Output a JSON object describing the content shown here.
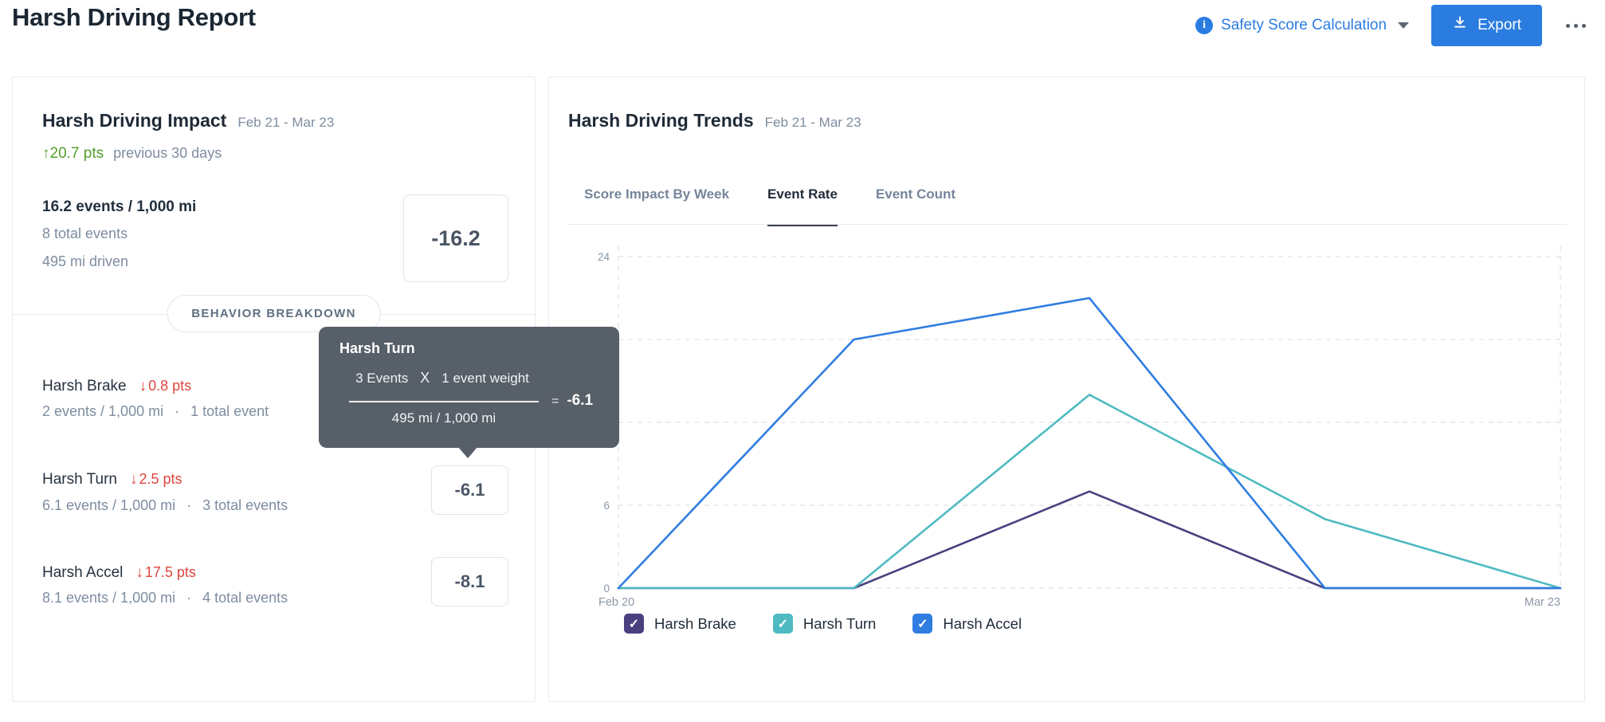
{
  "page": {
    "title": "Harsh Driving Report"
  },
  "header": {
    "info_glyph": "i",
    "link_label": "Safety Score Calculation",
    "export_label": "Export",
    "accent_color": "#2b7ce0"
  },
  "impact": {
    "title": "Harsh Driving Impact",
    "date_range": "Feb 21 - Mar 23",
    "delta_arrow": "↑",
    "delta_value": "20.7 pts",
    "delta_caption": "previous 30 days",
    "rate": "16.2 events / 1,000 mi",
    "total_events": "8 total events",
    "miles_driven": "495 mi driven",
    "score": "-16.2",
    "breakdown_label": "BEHAVIOR BREAKDOWN",
    "positive_color": "#53a02c",
    "negative_color": "#e0453e",
    "behaviors": [
      {
        "name": "Harsh Brake",
        "arrow": "↓",
        "delta": "0.8 pts",
        "rate": "2 events / 1,000 mi",
        "sep": "·",
        "total": "1 total event"
      },
      {
        "name": "Harsh Turn",
        "arrow": "↓",
        "delta": "2.5 pts",
        "rate": "6.1 events / 1,000 mi",
        "sep": "·",
        "total": "3 total events",
        "score": "-6.1"
      },
      {
        "name": "Harsh Accel",
        "arrow": "↓",
        "delta": "17.5 pts",
        "rate": "8.1 events / 1,000 mi",
        "sep": "·",
        "total": "4 total events",
        "score": "-8.1"
      }
    ]
  },
  "tooltip": {
    "title": "Harsh Turn",
    "numerator_events": "3 Events",
    "times": "X",
    "weight": "1 event weight",
    "denominator": "495 mi / 1,000 mi",
    "equals": "=",
    "result": "-6.1",
    "bg_color": "#575f68"
  },
  "trends": {
    "title": "Harsh Driving Trends",
    "date_range": "Feb 21 - Mar 23",
    "tabs": [
      {
        "label": "Score Impact By Week",
        "active": false
      },
      {
        "label": "Event Rate",
        "active": true
      },
      {
        "label": "Event Count",
        "active": false
      }
    ],
    "check_glyph": "✓"
  },
  "chart_data": {
    "type": "line",
    "title": "Event Rate trend, Feb 21 - Mar 23",
    "x_points": 5,
    "x_axis_labels": [
      "Feb 20",
      "Mar 23"
    ],
    "yticks": [
      0,
      6,
      12,
      18,
      24
    ],
    "ylim": [
      0,
      24
    ],
    "grid": "dashed-horizontal",
    "legend_position": "bottom",
    "series": [
      {
        "name": "Harsh Brake",
        "color": "#49407f",
        "values": [
          0,
          0,
          7,
          0,
          0
        ]
      },
      {
        "name": "Harsh Turn",
        "color": "#4fbac2",
        "values": [
          0,
          0,
          14,
          5,
          0
        ]
      },
      {
        "name": "Harsh Accel",
        "color": "#2f7de1",
        "values": [
          0,
          18,
          21,
          0,
          0
        ]
      }
    ]
  }
}
